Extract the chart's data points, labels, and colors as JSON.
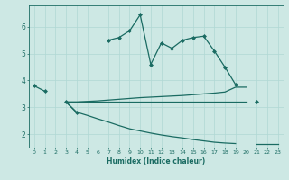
{
  "xlabel": "Humidex (Indice chaleur)",
  "bg_color": "#cde8e4",
  "line_color": "#1a6b62",
  "grid_color": "#b0d8d4",
  "x": [
    0,
    1,
    2,
    3,
    4,
    5,
    6,
    7,
    8,
    9,
    10,
    11,
    12,
    13,
    14,
    15,
    16,
    17,
    18,
    19,
    20,
    21,
    22,
    23
  ],
  "line1": [
    3.8,
    3.6,
    null,
    3.2,
    2.8,
    null,
    null,
    5.5,
    5.6,
    5.85,
    6.45,
    4.6,
    5.4,
    5.2,
    5.5,
    5.6,
    5.65,
    5.1,
    4.5,
    3.85,
    null,
    3.2,
    null,
    null
  ],
  "line2": [
    null,
    null,
    null,
    3.2,
    3.2,
    3.22,
    3.24,
    3.27,
    3.3,
    3.33,
    3.36,
    3.38,
    3.4,
    3.42,
    3.44,
    3.47,
    3.5,
    3.53,
    3.57,
    3.75,
    3.75,
    null,
    null,
    null
  ],
  "line3": [
    null,
    null,
    null,
    3.2,
    2.82,
    2.7,
    2.57,
    2.45,
    2.32,
    2.2,
    2.12,
    2.04,
    1.97,
    1.91,
    1.86,
    1.8,
    1.75,
    1.7,
    1.67,
    1.65,
    null,
    1.65,
    1.65,
    1.65
  ],
  "line4_x": [
    3,
    20
  ],
  "line4_y": [
    3.2,
    3.2
  ],
  "xlim": [
    -0.5,
    23.5
  ],
  "ylim": [
    1.5,
    6.8
  ],
  "yticks": [
    2,
    3,
    4,
    5,
    6
  ]
}
